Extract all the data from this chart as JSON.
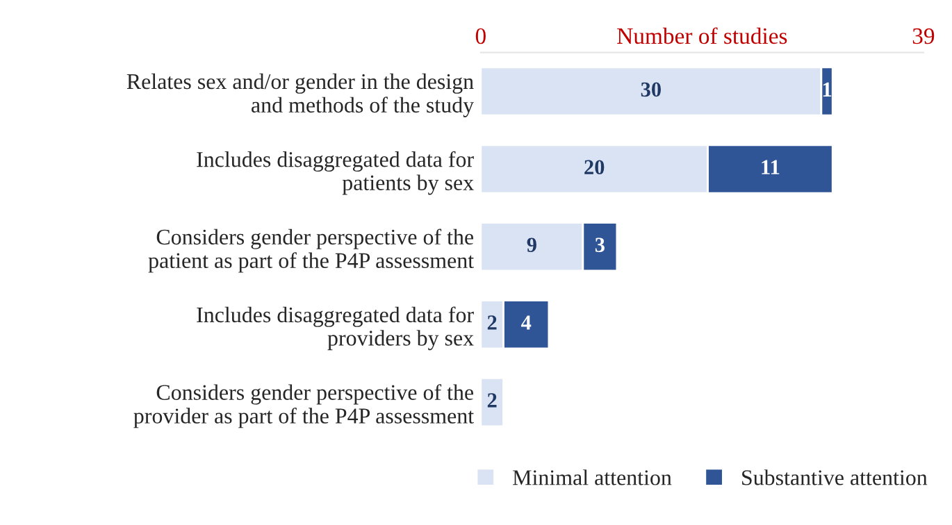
{
  "chart_data": {
    "type": "bar",
    "orientation": "horizontal",
    "stacked": true,
    "xlabel": "Number of studies",
    "categories": [
      "Relates sex and/or gender in the design\nand methods of the study",
      "Includes disaggregated data for\npatients by sex",
      "Considers gender perspective of the\npatient as part of the P4P assessment",
      "Includes disaggregated data for\nproviders by sex",
      "Considers gender perspective of the\nprovider as part of the P4P assessment"
    ],
    "series": [
      {
        "name": "Minimal attention",
        "color": "#dae3f3",
        "values": [
          30,
          20,
          9,
          2,
          2
        ]
      },
      {
        "name": "Substantive attention",
        "color": "#2f5597",
        "values": [
          1,
          11,
          3,
          4,
          null
        ]
      }
    ],
    "xlim": [
      0,
      39
    ],
    "xticks": [
      0,
      39
    ],
    "grid": false,
    "legend": "bottom",
    "data_labels": true
  }
}
